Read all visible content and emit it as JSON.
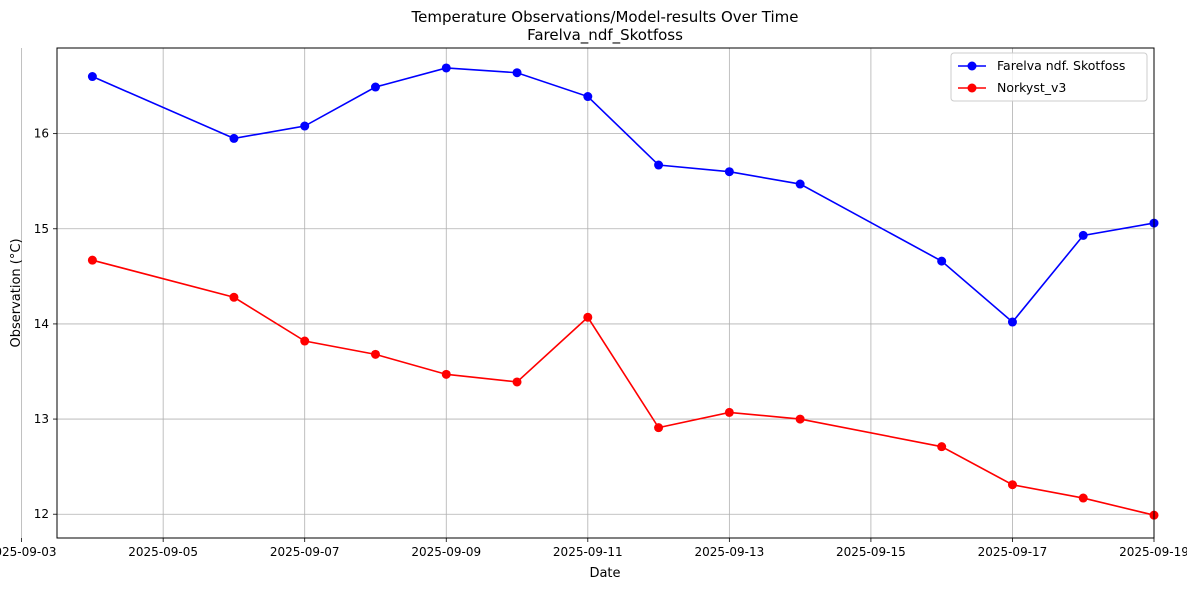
{
  "chart_data": {
    "type": "line",
    "title": "Temperature Observations/Model-results Over Time",
    "subtitle": "Farelva_ndf_Skotfoss",
    "xlabel": "Date",
    "ylabel": "Observation (°C)",
    "x_type": "date",
    "xlim": [
      "2025-09-03T12:00",
      "2025-09-19T00:00"
    ],
    "ylim": [
      11.75,
      16.9
    ],
    "x_ticks": [
      "2025-09-03",
      "2025-09-05",
      "2025-09-07",
      "2025-09-09",
      "2025-09-11",
      "2025-09-13",
      "2025-09-15",
      "2025-09-17",
      "2025-09-19"
    ],
    "y_ticks": [
      12,
      13,
      14,
      15,
      16
    ],
    "grid": true,
    "legend_position": "top-right",
    "series": [
      {
        "name": "Farelva ndf. Skotfoss",
        "color": "#0000ff",
        "marker": "circle",
        "x": [
          "2025-09-04",
          "2025-09-06",
          "2025-09-07",
          "2025-09-08",
          "2025-09-09",
          "2025-09-10",
          "2025-09-11",
          "2025-09-12",
          "2025-09-13",
          "2025-09-14",
          "2025-09-16",
          "2025-09-17",
          "2025-09-18",
          "2025-09-19"
        ],
        "y": [
          16.6,
          15.95,
          16.08,
          16.49,
          16.69,
          16.64,
          16.39,
          15.67,
          15.6,
          15.47,
          14.66,
          14.02,
          14.93,
          15.06
        ]
      },
      {
        "name": "Norkyst_v3",
        "color": "#ff0000",
        "marker": "circle",
        "x": [
          "2025-09-04",
          "2025-09-06",
          "2025-09-07",
          "2025-09-08",
          "2025-09-09",
          "2025-09-10",
          "2025-09-11",
          "2025-09-12",
          "2025-09-13",
          "2025-09-14",
          "2025-09-16",
          "2025-09-17",
          "2025-09-18",
          "2025-09-19"
        ],
        "y": [
          14.67,
          14.28,
          13.82,
          13.68,
          13.47,
          13.39,
          14.07,
          12.91,
          13.07,
          13.0,
          12.71,
          12.31,
          12.17,
          11.99
        ]
      }
    ]
  }
}
